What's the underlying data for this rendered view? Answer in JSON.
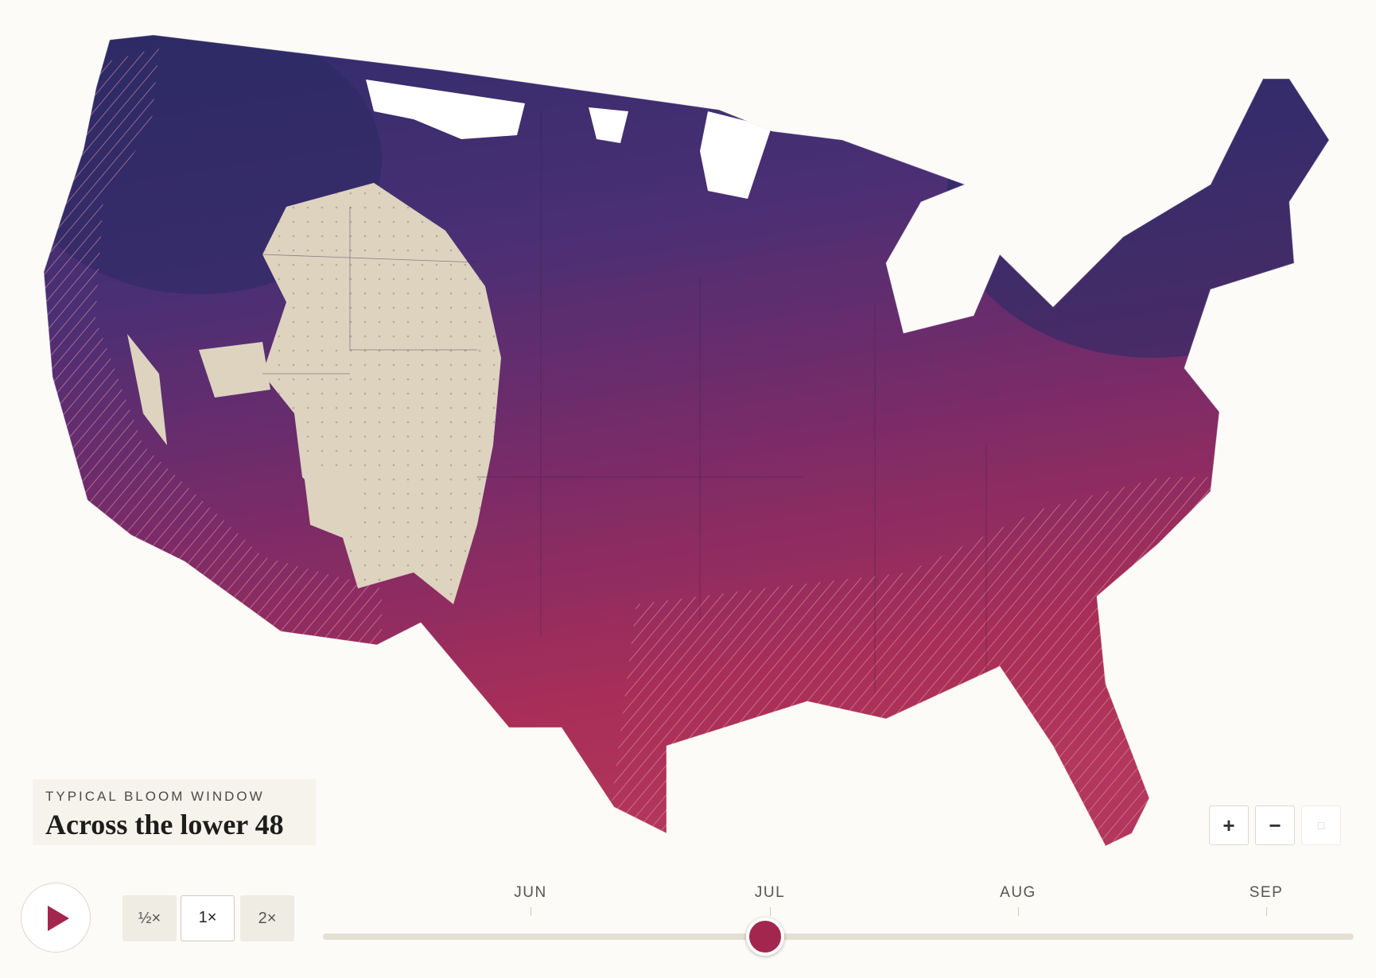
{
  "legend": {
    "eyebrow": "TYPICAL BLOOM WINDOW",
    "title": "Across the lower 48"
  },
  "controls": {
    "speeds": [
      "½×",
      "1×",
      "2×"
    ],
    "zoom": [
      "+",
      "−"
    ]
  },
  "timeline": {
    "months": [
      "JUN",
      "JUL",
      "AUG",
      "SEP"
    ]
  }
}
